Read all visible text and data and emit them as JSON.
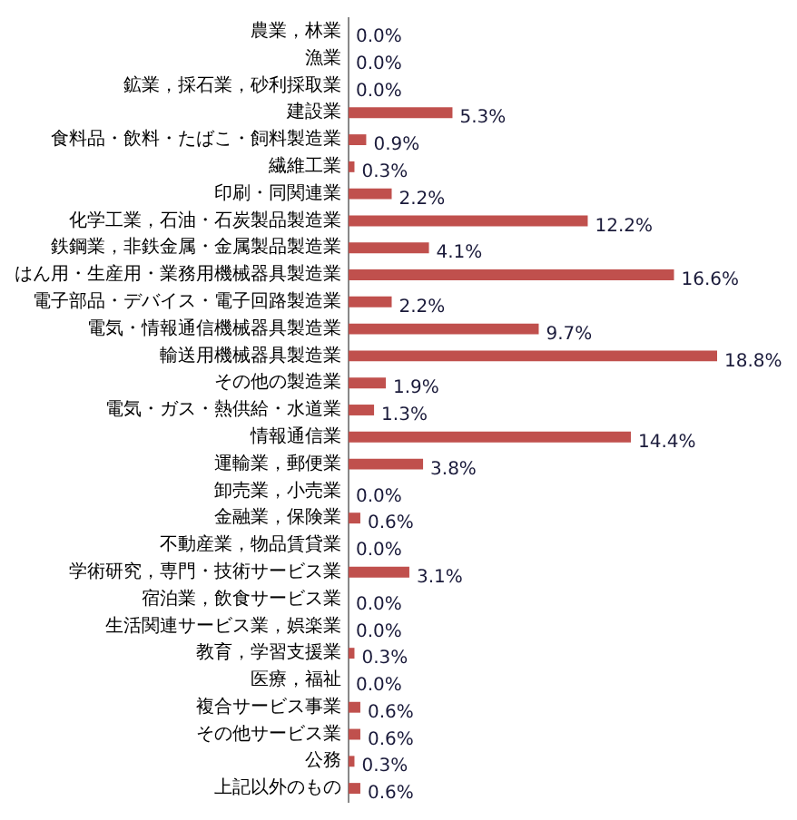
{
  "chart_data": {
    "type": "bar",
    "orientation": "horizontal",
    "color": "#c0504d",
    "categories": [
      "農業，林業",
      "漁業",
      "鉱業，採石業，砂利採取業",
      "建設業",
      "食料品・飲料・たばこ・飼料製造業",
      "繊維工業",
      "印刷・同関連業",
      "化学工業，石油・石炭製品製造業",
      "鉄鋼業，非鉄金属・金属製品製造業",
      "はん用・生産用・業務用機械器具製造業",
      "電子部品・デバイス・電子回路製造業",
      "電気・情報通信機械器具製造業",
      "輸送用機械器具製造業",
      "その他の製造業",
      "電気・ガス・熱供給・水道業",
      "情報通信業",
      "運輸業，郵便業",
      "卸売業，小売業",
      "金融業，保険業",
      "不動産業，物品賃貸業",
      "学術研究，専門・技術サービス業",
      "宿泊業，飲食サービス業",
      "生活関連サービス業，娯楽業",
      "教育，学習支援業",
      "医療，福祉",
      "複合サービス事業",
      "その他サービス業",
      "公務",
      "上記以外のもの"
    ],
    "values": [
      0.0,
      0.0,
      0.0,
      5.3,
      0.9,
      0.3,
      2.2,
      12.2,
      4.1,
      16.6,
      2.2,
      9.7,
      18.8,
      1.9,
      1.3,
      14.4,
      3.8,
      0.0,
      0.6,
      0.0,
      3.1,
      0.0,
      0.0,
      0.3,
      0.0,
      0.6,
      0.6,
      0.3,
      0.6
    ],
    "value_labels": [
      "0.0%",
      "0.0%",
      "0.0%",
      "5.3%",
      "0.9%",
      "0.3%",
      "2.2%",
      "12.2%",
      "4.1%",
      "16.6%",
      "2.2%",
      "9.7%",
      "18.8%",
      "1.9%",
      "1.3%",
      "14.4%",
      "3.8%",
      "0.0%",
      "0.6%",
      "0.0%",
      "3.1%",
      "0.0%",
      "0.0%",
      "0.3%",
      "0.0%",
      "0.6%",
      "0.6%",
      "0.3%",
      "0.6%"
    ],
    "legend": false
  }
}
